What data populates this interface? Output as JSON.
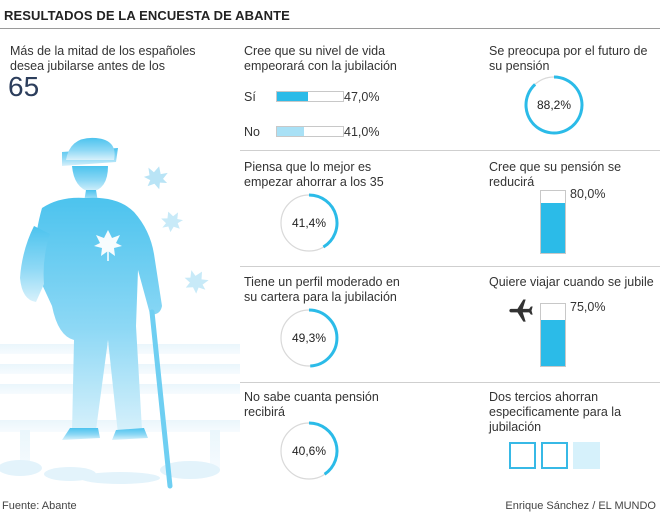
{
  "header": {
    "title": "RESULTADOS DE LA ENCUESTA DE ABANTE"
  },
  "intro": {
    "text": "Más de la mitad de los españoles desea jubilarse antes de los",
    "number": "65"
  },
  "footer": {
    "source": "Fuente: Abante",
    "credit": "Enrique Sánchez / EL MUNDO"
  },
  "colors": {
    "accent": "#2bbbe8",
    "accent_light": "#a9e1f6",
    "track": "#d9d9d9",
    "rule": "#cfcfcf"
  },
  "icons": {
    "airplane": "airplane-icon",
    "leaf": "maple-leaf-icon",
    "elderly_man": "elderly-man-silhouette"
  },
  "chart_data": [
    {
      "type": "bar",
      "title": "Cree que su nivel de vida empeorará con la jubilación",
      "categories": [
        "Sí",
        "No"
      ],
      "values": [
        47.0,
        41.0
      ],
      "labels": [
        "47,0%",
        "41,0%"
      ],
      "ylim": [
        0,
        100
      ]
    },
    {
      "type": "pie",
      "title": "Se preocupa por el futuro de su pensión",
      "values": [
        88.2
      ],
      "label": "88,2%"
    },
    {
      "type": "pie",
      "title": "Piensa que lo mejor es empezar ahorrar a los 35",
      "values": [
        41.4
      ],
      "label": "41,4%"
    },
    {
      "type": "bar",
      "title": "Cree que su pensión se reducirá",
      "values": [
        80.0
      ],
      "label": "80,0%",
      "ylim": [
        0,
        100
      ]
    },
    {
      "type": "pie",
      "title": "Tiene un perfil moderado en su cartera para la jubilación",
      "values": [
        49.3
      ],
      "label": "49,3%"
    },
    {
      "type": "bar",
      "title": "Quiere viajar cuando se jubile",
      "values": [
        75.0
      ],
      "label": "75,0%",
      "ylim": [
        0,
        100
      ]
    },
    {
      "type": "pie",
      "title": "No sabe cuanta pensión recibirá",
      "values": [
        40.6
      ],
      "label": "40,6%"
    },
    {
      "type": "table",
      "title": "Dos tercios ahorran especificamente para la jubilación",
      "values": [
        2,
        3
      ]
    }
  ]
}
